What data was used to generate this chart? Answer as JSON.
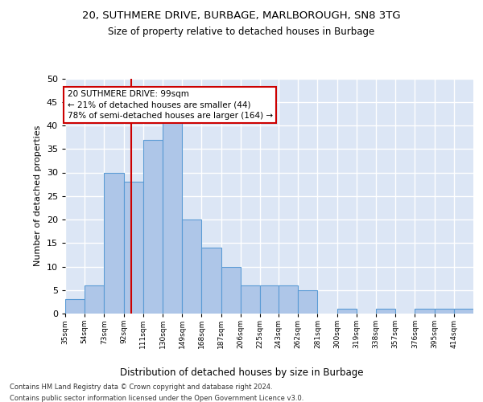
{
  "title1": "20, SUTHMERE DRIVE, BURBAGE, MARLBOROUGH, SN8 3TG",
  "title2": "Size of property relative to detached houses in Burbage",
  "xlabel": "Distribution of detached houses by size in Burbage",
  "ylabel": "Number of detached properties",
  "footnote1": "Contains HM Land Registry data © Crown copyright and database right 2024.",
  "footnote2": "Contains public sector information licensed under the Open Government Licence v3.0.",
  "annotation_title": "20 SUTHMERE DRIVE: 99sqm",
  "annotation_line1": "← 21% of detached houses are smaller (44)",
  "annotation_line2": "78% of semi-detached houses are larger (164) →",
  "property_sqm": 99,
  "bar_left_edges": [
    35,
    54,
    73,
    92,
    111,
    130,
    149,
    168,
    187,
    206,
    225,
    243,
    262,
    281,
    300,
    319,
    338,
    357,
    376,
    395,
    414
  ],
  "bar_heights": [
    3,
    6,
    30,
    28,
    37,
    42,
    20,
    14,
    10,
    6,
    6,
    6,
    5,
    0,
    1,
    0,
    1,
    0,
    1,
    1,
    1
  ],
  "bar_color": "#aec6e8",
  "bar_edge_color": "#5a9bd5",
  "ref_line_color": "#cc0000",
  "background_color": "#dce6f5",
  "grid_color": "#ffffff",
  "annotation_box_color": "#ffffff",
  "annotation_box_edge": "#cc0000",
  "ylim": [
    0,
    50
  ],
  "yticks": [
    0,
    5,
    10,
    15,
    20,
    25,
    30,
    35,
    40,
    45,
    50
  ],
  "bin_width": 19
}
